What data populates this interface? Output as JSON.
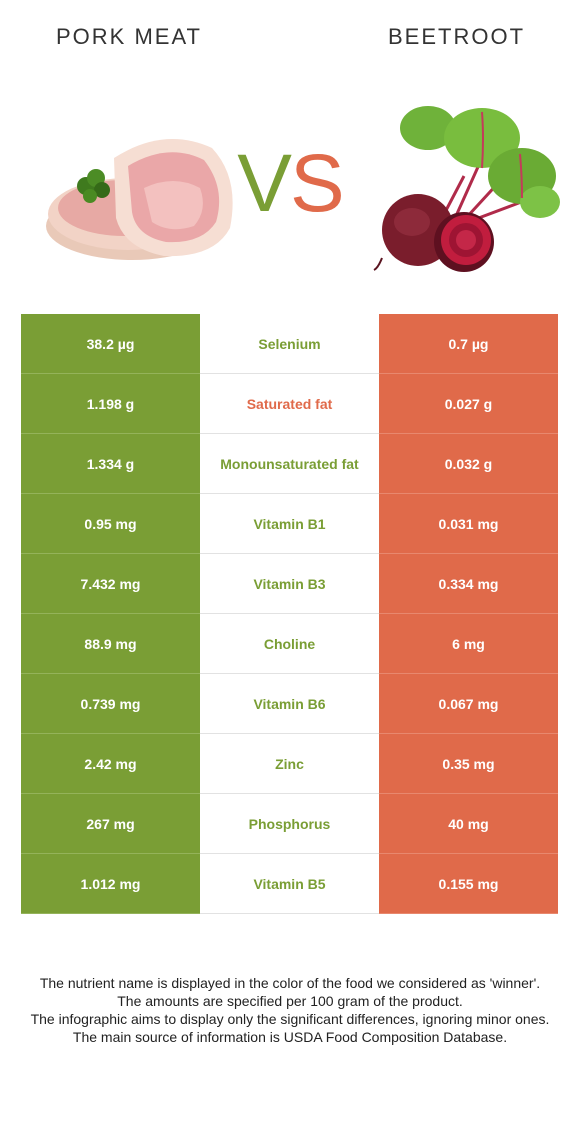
{
  "header": {
    "left_title": "PORK MEAT",
    "right_title": "BEETROOT",
    "vs_v": "V",
    "vs_s": "S"
  },
  "colors": {
    "pork": "#7a9e35",
    "beetroot": "#e06a4a"
  },
  "rows": [
    {
      "left": "38.2 µg",
      "nutrient": "Selenium",
      "winner": "pork",
      "right": "0.7 µg"
    },
    {
      "left": "1.198 g",
      "nutrient": "Saturated fat",
      "winner": "beetroot",
      "right": "0.027 g"
    },
    {
      "left": "1.334 g",
      "nutrient": "Monounsaturated fat",
      "winner": "pork",
      "right": "0.032 g"
    },
    {
      "left": "0.95 mg",
      "nutrient": "Vitamin B1",
      "winner": "pork",
      "right": "0.031 mg"
    },
    {
      "left": "7.432 mg",
      "nutrient": "Vitamin B3",
      "winner": "pork",
      "right": "0.334 mg"
    },
    {
      "left": "88.9 mg",
      "nutrient": "Choline",
      "winner": "pork",
      "right": "6 mg"
    },
    {
      "left": "0.739 mg",
      "nutrient": "Vitamin B6",
      "winner": "pork",
      "right": "0.067 mg"
    },
    {
      "left": "2.42 mg",
      "nutrient": "Zinc",
      "winner": "pork",
      "right": "0.35 mg"
    },
    {
      "left": "267 mg",
      "nutrient": "Phosphorus",
      "winner": "pork",
      "right": "40 mg"
    },
    {
      "left": "1.012 mg",
      "nutrient": "Vitamin B5",
      "winner": "pork",
      "right": "0.155 mg"
    }
  ],
  "notes": [
    "The nutrient name is displayed in the color of the food we considered as 'winner'.",
    "The amounts are specified per 100 gram of the product.",
    "The infographic aims to display only the significant differences, ignoring minor ones.",
    "The main source of information is USDA Food Composition Database."
  ]
}
